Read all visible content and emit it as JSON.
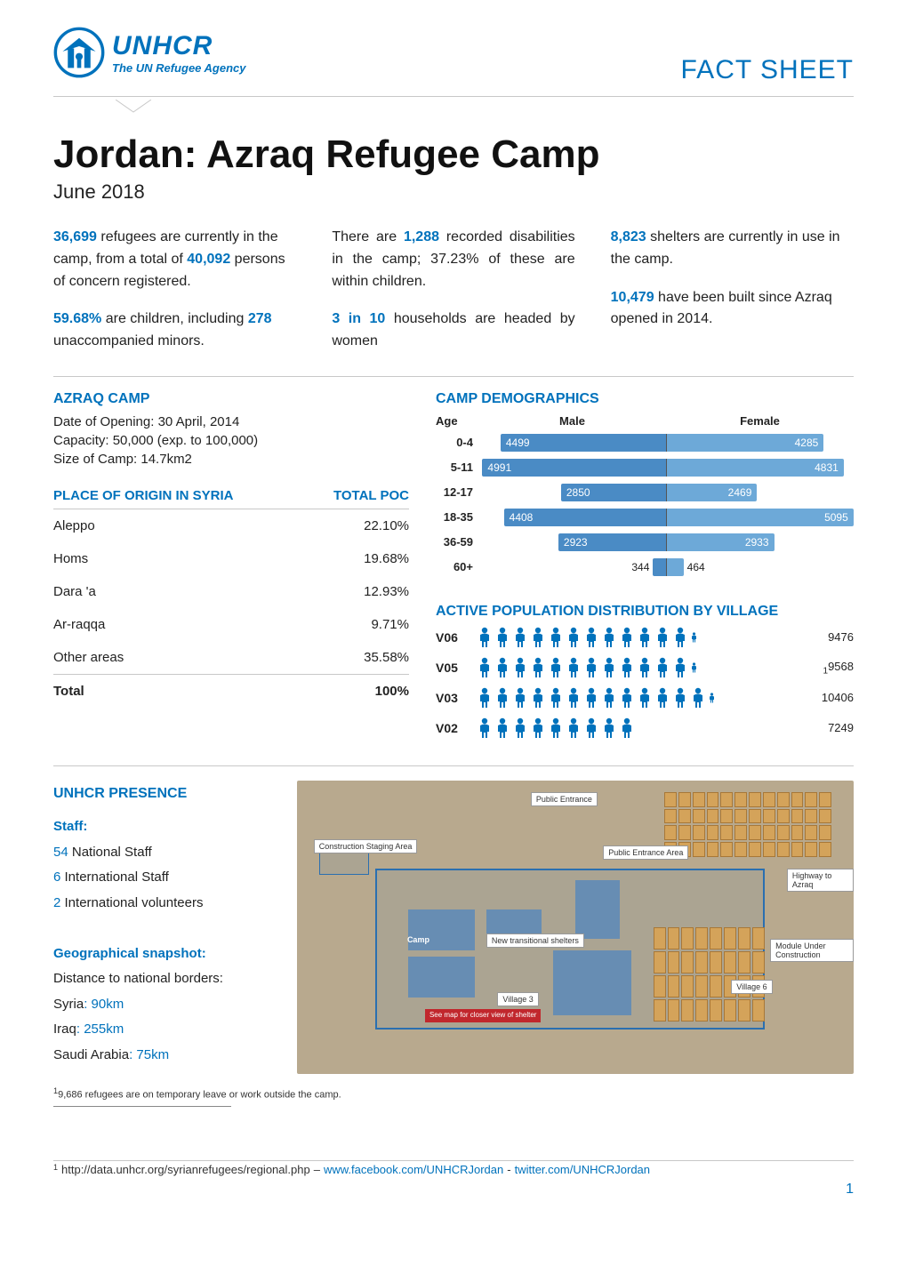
{
  "brand": {
    "name": "UNHCR",
    "tagline": "The UN Refugee Agency",
    "logo_color": "#0072bc"
  },
  "doc_label": "FACT SHEET",
  "title": "Jordan: Azraq Refugee Camp",
  "date": "June 2018",
  "accent_color": "#0072bc",
  "stats": {
    "col1": {
      "p1_a": "36,699",
      "p1_b": " refugees are currently in the camp, from a total of ",
      "p1_c": "40,092",
      "p1_d": " persons of concern registered.",
      "p2_a": "59.68%",
      "p2_b": " are children, including ",
      "p2_c": "278",
      "p2_d": " unaccompanied minors."
    },
    "col2": {
      "p1_a": "There are ",
      "p1_b": "1,288",
      "p1_c": " recorded disabilities in the camp; 37.23% of these are within children.",
      "p2_a": "3 in 10",
      "p2_b": " households are headed by women"
    },
    "col3": {
      "p1_a": "8,823",
      "p1_b": " shelters are currently in use in the camp.",
      "p2_a": "10,479",
      "p2_b": " have been built since Azraq opened in 2014."
    }
  },
  "camp_info": {
    "heading": "AZRAQ CAMP",
    "opening": "Date of Opening: 30 April, 2014",
    "capacity": "Capacity: 50,000 (exp. to 100,000)",
    "size": "Size of Camp: 14.7km2"
  },
  "origin_table": {
    "head_place": "PLACE OF ORIGIN IN SYRIA",
    "head_total": "TOTAL POC",
    "rows": [
      {
        "place": "Aleppo",
        "pct": "22.10%"
      },
      {
        "place": "Homs",
        "pct": "19.68%"
      },
      {
        "place": "Dara 'a",
        "pct": "12.93%"
      },
      {
        "place": "Ar-raqqa",
        "pct": "9.71%"
      },
      {
        "place": "Other areas",
        "pct": "35.58%"
      }
    ],
    "total_label": "Total",
    "total_pct": "100%"
  },
  "demographics": {
    "heading": "CAMP DEMOGRAPHICS",
    "age_label": "Age",
    "male_label": "Male",
    "female_label": "Female",
    "max_val": 5100,
    "male_color": "#4a8bc5",
    "female_color": "#6da9d8",
    "rows": [
      {
        "age": "0-4",
        "male": 4499,
        "female": 4285
      },
      {
        "age": "5-11",
        "male": 4991,
        "female": 4831
      },
      {
        "age": "12-17",
        "male": 2850,
        "female": 2469
      },
      {
        "age": "18-35",
        "male": 4408,
        "female": 5095
      },
      {
        "age": "36-59",
        "male": 2923,
        "female": 2933
      },
      {
        "age": "60+",
        "male": 344,
        "female": 464
      }
    ]
  },
  "villages": {
    "heading": "ACTIVE POPULATION DISTRIBUTION BY VILLAGE",
    "icon_color": "#0072bc",
    "rows": [
      {
        "label": "V06",
        "value": 9476,
        "icons": 12,
        "partial": true
      },
      {
        "label": "V05",
        "value": 9568,
        "icons": 12,
        "partial": true,
        "sub": "1"
      },
      {
        "label": "V03",
        "value": 10406,
        "icons": 13,
        "partial": true
      },
      {
        "label": "V02",
        "value": 7249,
        "icons": 9,
        "partial": false
      }
    ]
  },
  "presence": {
    "heading": "UNHCR PRESENCE",
    "staff_label": "Staff:",
    "national": {
      "n": "54",
      "t": " National Staff"
    },
    "intl": {
      "n": "6",
      "t": " International Staff"
    },
    "vol": {
      "n": "2",
      "t": " International volunteers"
    },
    "geo_label": "Geographical snapshot:",
    "dist_label": "Distance to national borders:",
    "syria": {
      "c": "Syria",
      "d": "90km"
    },
    "iraq": {
      "c": "Iraq",
      "d": "255km"
    },
    "saudi": {
      "c": "Saudi Arabia",
      "d": "75km"
    }
  },
  "map": {
    "bg": "#b8a98e",
    "outline_color": "#2a6fb0",
    "labels": {
      "public_entrance": "Public Entrance",
      "construction": "Construction Staging Area",
      "public_area": "Public Entrance Area",
      "highway": "Highway to Azraq",
      "new_trans": "New transitional shelters",
      "village3": "Village 3",
      "village6": "Village 6",
      "module": "Module Under Construction",
      "red": "See map for closer view of shelter"
    },
    "camp_label": "Camp"
  },
  "footnote": {
    "sup": "1",
    "text": "9,686 refugees are on temporary leave or work outside the camp."
  },
  "footer": {
    "sup": "1",
    "url1": "http://data.unhcr.org/syrianrefugees/regional.php",
    "sep1": "  –  ",
    "url2": "www.facebook.com/UNHCRJordan",
    "sep2": "  -  ",
    "url3": "twitter.com/UNHCRJordan",
    "page": "1"
  }
}
